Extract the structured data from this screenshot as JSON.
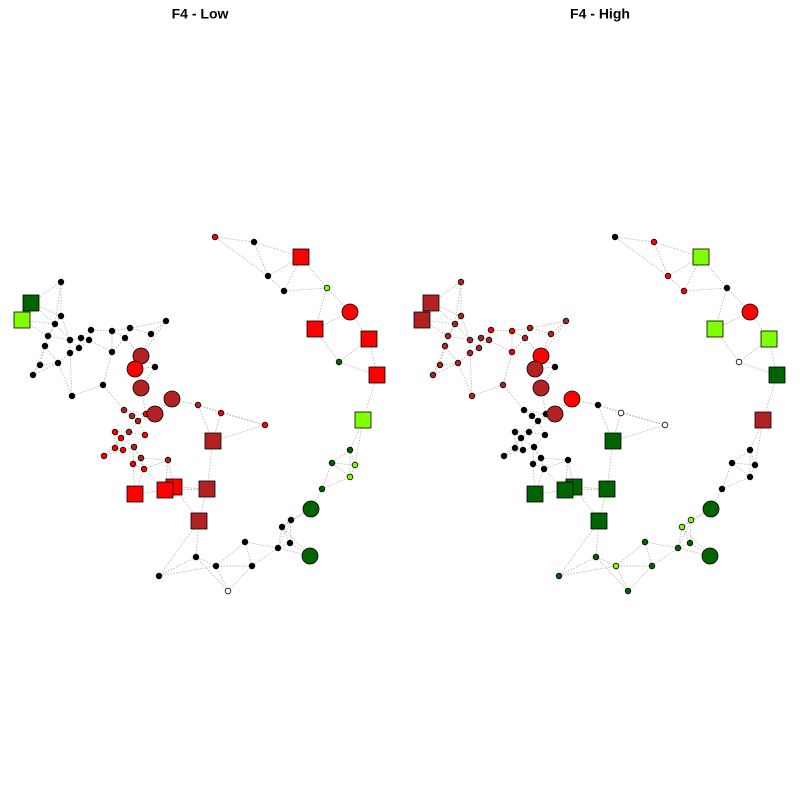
{
  "panels": [
    {
      "title": "F4 - Low"
    },
    {
      "title": "F4 - High"
    }
  ]
}
